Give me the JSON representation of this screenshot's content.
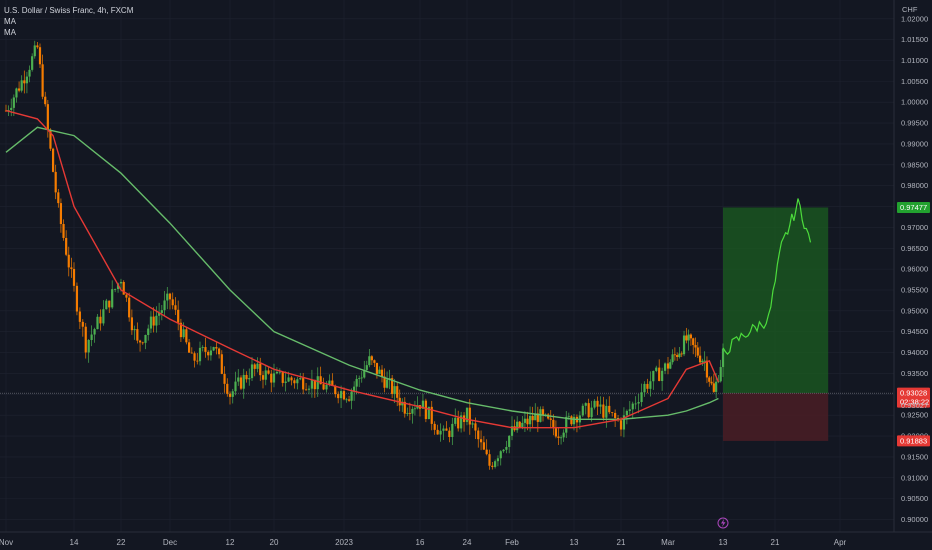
{
  "legend": {
    "title": "U.S. Dollar / Swiss Franc, 4h, FXCM",
    "ma1": "MA",
    "ma2": "MA"
  },
  "currency_label": "CHF",
  "colors": {
    "background": "#131722",
    "grid": "#1f2330",
    "up": "#26a69a",
    "candle_up": "#4caf50",
    "candle_down": "#f57c00",
    "ma_fast": "#e53935",
    "ma_slow": "#66bb6a",
    "target_zone": "#1b5e20",
    "stop_zone": "#4a1d24"
  },
  "chart_data": {
    "type": "line",
    "title": "U.S. Dollar / Swiss Franc, 4h, FXCM",
    "xlabel": "",
    "ylabel": "CHF",
    "x_tick_labels": [
      "Nov",
      "14",
      "22",
      "Dec",
      "12",
      "20",
      "2023",
      "16",
      "24",
      "Feb",
      "13",
      "21",
      "Mar",
      "13",
      "21",
      "Apr"
    ],
    "y_tick_labels": [
      "0.90000",
      "0.90500",
      "0.91000",
      "0.91500",
      "0.92000",
      "0.92500",
      "0.93000",
      "0.93500",
      "0.94000",
      "0.94500",
      "0.95000",
      "0.95500",
      "0.96000",
      "0.96500",
      "0.97000",
      "0.97500",
      "0.98000",
      "0.98500",
      "0.99000",
      "0.99500",
      "1.00000",
      "1.00500",
      "1.01000",
      "1.01500",
      "1.02000"
    ],
    "ylim": [
      0.897,
      1.0245
    ],
    "grid": true,
    "series": [
      {
        "x": [
          "Nov 1",
          "Nov 4",
          "Nov 7",
          "Nov 9",
          "Nov 11",
          "Nov 14",
          "Nov 16",
          "Nov 18",
          "Nov 22",
          "Nov 25",
          "Nov 28",
          "Dec 1",
          "Dec 5",
          "Dec 9",
          "Dec 12",
          "Dec 16",
          "Dec 20",
          "Dec 26",
          "Jan 2",
          "Jan 6",
          "Jan 10",
          "Jan 13",
          "Jan 16",
          "Jan 20",
          "Jan 24",
          "Jan 28",
          "Feb 1",
          "Feb 6",
          "Feb 10",
          "Feb 13",
          "Feb 17",
          "Feb 21",
          "Feb 25",
          "Mar 1",
          "Mar 5",
          "Mar 9",
          "Mar 11",
          "Mar 13",
          "Mar 16",
          "Mar 20",
          "Mar 22",
          "Mar 25",
          "Mar 27"
        ],
        "values": [
          0.998,
          1.005,
          1.013,
          0.993,
          0.974,
          0.955,
          0.942,
          0.947,
          0.958,
          0.942,
          0.948,
          0.953,
          0.938,
          0.942,
          0.93,
          0.936,
          0.934,
          0.933,
          0.93,
          0.938,
          0.932,
          0.927,
          0.928,
          0.92,
          0.925,
          0.913,
          0.921,
          0.925,
          0.921,
          0.925,
          0.927,
          0.923,
          0.932,
          0.937,
          0.943,
          0.938,
          0.93,
          0.94,
          0.944,
          0.948,
          0.965,
          0.976,
          0.966
        ]
      },
      {
        "name": "MA",
        "x": [
          "Nov 1",
          "Nov 7",
          "Nov 10",
          "Nov 14",
          "Nov 22",
          "Dec 1",
          "Dec 12",
          "Dec 20",
          "Jan 2",
          "Jan 16",
          "Jan 24",
          "Feb 1",
          "Feb 13",
          "Feb 21",
          "Mar 1",
          "Mar 5",
          "Mar 10",
          "Mar 12"
        ],
        "values": [
          0.998,
          0.996,
          0.992,
          0.975,
          0.955,
          0.948,
          0.941,
          0.936,
          0.931,
          0.927,
          0.924,
          0.922,
          0.922,
          0.924,
          0.929,
          0.936,
          0.938,
          0.933
        ]
      },
      {
        "name": "MA",
        "x": [
          "Nov 1",
          "Nov 7",
          "Nov 14",
          "Nov 22",
          "Dec 1",
          "Dec 12",
          "Dec 20",
          "Jan 2",
          "Jan 16",
          "Jan 24",
          "Feb 1",
          "Feb 13",
          "Feb 21",
          "Mar 1",
          "Mar 5",
          "Mar 10",
          "Mar 12"
        ],
        "values": [
          0.988,
          0.994,
          0.992,
          0.983,
          0.971,
          0.955,
          0.945,
          0.937,
          0.931,
          0.928,
          0.926,
          0.924,
          0.924,
          0.925,
          0.926,
          0.928,
          0.929
        ]
      }
    ],
    "position": {
      "entry": 0.93028,
      "target": 0.97477,
      "stop": 0.91883,
      "from": "Mar 13",
      "to": "Mar 30"
    },
    "price_labels": {
      "target": "0.97477",
      "entry": "0.93028",
      "countdown": "02:38:22",
      "current": "0.93027",
      "stop": "0.91883"
    },
    "annotations": [
      {
        "type": "lightning-marker",
        "x": "Mar 13"
      }
    ]
  }
}
